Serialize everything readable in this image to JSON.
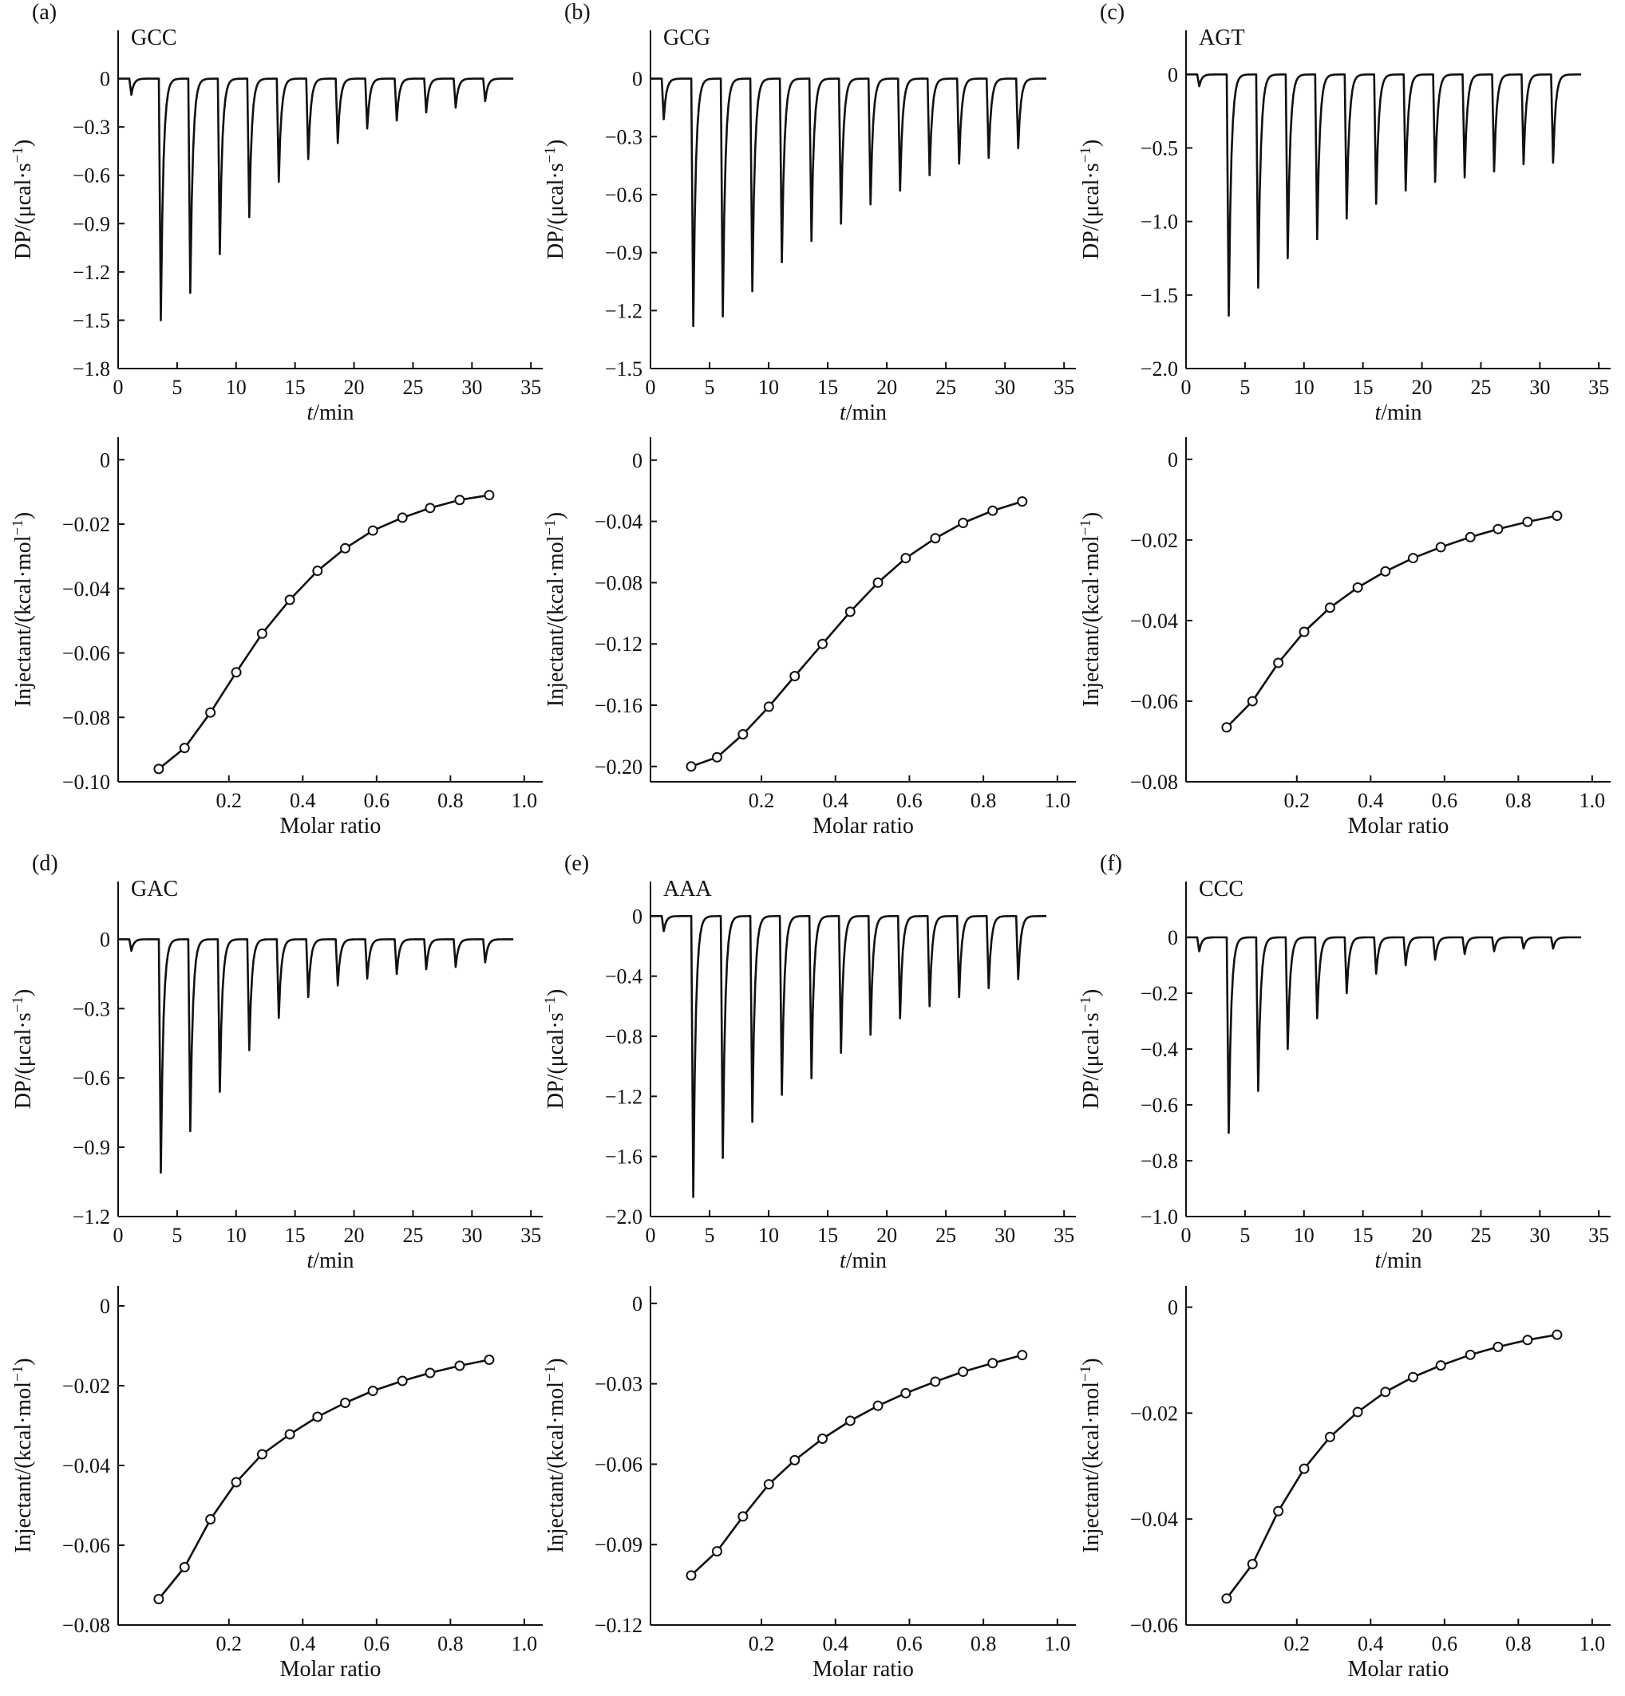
{
  "figure": {
    "panels": [
      {
        "tag": "(a)",
        "sample": "GCC"
      },
      {
        "tag": "(b)",
        "sample": "GCG"
      },
      {
        "tag": "(c)",
        "sample": "AGT"
      },
      {
        "tag": "(d)",
        "sample": "GAC"
      },
      {
        "tag": "(e)",
        "sample": "AAA"
      },
      {
        "tag": "(f)",
        "sample": "CCC"
      }
    ]
  },
  "chart_data": [
    {
      "panel": "(a)",
      "type": "line",
      "title": "GCC",
      "xlabel": "t/min",
      "ylabel": "DP/(μcal·s⁻¹)",
      "xlim": [
        0,
        36
      ],
      "ylim": [
        -1.8,
        0.3
      ],
      "xticks": [
        0,
        5,
        10,
        15,
        20,
        25,
        30,
        35
      ],
      "yticks": [
        0,
        -0.3,
        -0.6,
        -0.9,
        -1.2,
        -1.5,
        -1.8
      ],
      "ytick_labels": [
        "0",
        "−0.3",
        "−0.6",
        "−0.9",
        "−1.2",
        "−1.5",
        "−1.8"
      ],
      "trace_end": 33.5,
      "injections": [
        {
          "t": 1.0,
          "depth": -0.1
        },
        {
          "t": 3.5,
          "depth": -1.5
        },
        {
          "t": 6.0,
          "depth": -1.33
        },
        {
          "t": 8.5,
          "depth": -1.09
        },
        {
          "t": 11.0,
          "depth": -0.86
        },
        {
          "t": 13.5,
          "depth": -0.64
        },
        {
          "t": 16.0,
          "depth": -0.5
        },
        {
          "t": 18.5,
          "depth": -0.4
        },
        {
          "t": 21.0,
          "depth": -0.31
        },
        {
          "t": 23.5,
          "depth": -0.26
        },
        {
          "t": 26.0,
          "depth": -0.21
        },
        {
          "t": 28.5,
          "depth": -0.18
        },
        {
          "t": 31.0,
          "depth": -0.14
        }
      ]
    },
    {
      "panel": "(b)",
      "type": "line",
      "title": "GCG",
      "xlabel": "t/min",
      "ylabel": "DP/(μcal·s⁻¹)",
      "xlim": [
        0,
        36
      ],
      "ylim": [
        -1.5,
        0.25
      ],
      "xticks": [
        0,
        5,
        10,
        15,
        20,
        25,
        30,
        35
      ],
      "yticks": [
        0,
        -0.3,
        -0.6,
        -0.9,
        -1.2,
        -1.5
      ],
      "ytick_labels": [
        "0",
        "−0.3",
        "−0.6",
        "−0.9",
        "−1.2",
        "−1.5"
      ],
      "trace_end": 33.5,
      "injections": [
        {
          "t": 1.0,
          "depth": -0.21
        },
        {
          "t": 3.5,
          "depth": -1.28
        },
        {
          "t": 6.0,
          "depth": -1.23
        },
        {
          "t": 8.5,
          "depth": -1.1
        },
        {
          "t": 11.0,
          "depth": -0.95
        },
        {
          "t": 13.5,
          "depth": -0.84
        },
        {
          "t": 16.0,
          "depth": -0.75
        },
        {
          "t": 18.5,
          "depth": -0.65
        },
        {
          "t": 21.0,
          "depth": -0.58
        },
        {
          "t": 23.5,
          "depth": -0.5
        },
        {
          "t": 26.0,
          "depth": -0.44
        },
        {
          "t": 28.5,
          "depth": -0.41
        },
        {
          "t": 31.0,
          "depth": -0.36
        }
      ]
    },
    {
      "panel": "(c)",
      "type": "line",
      "title": "AGT",
      "xlabel": "t/min",
      "ylabel": "DP/(μcal·s⁻¹)",
      "xlim": [
        0,
        36
      ],
      "ylim": [
        -2.0,
        0.3
      ],
      "xticks": [
        0,
        5,
        10,
        15,
        20,
        25,
        30,
        35
      ],
      "yticks": [
        0,
        -0.5,
        -1.0,
        -1.5,
        -2.0
      ],
      "ytick_labels": [
        "0",
        "−0.5",
        "−1.0",
        "−1.5",
        "−2.0"
      ],
      "trace_end": 33.5,
      "injections": [
        {
          "t": 1.0,
          "depth": -0.08
        },
        {
          "t": 3.5,
          "depth": -1.64
        },
        {
          "t": 6.0,
          "depth": -1.45
        },
        {
          "t": 8.5,
          "depth": -1.25
        },
        {
          "t": 11.0,
          "depth": -1.12
        },
        {
          "t": 13.5,
          "depth": -0.98
        },
        {
          "t": 16.0,
          "depth": -0.88
        },
        {
          "t": 18.5,
          "depth": -0.79
        },
        {
          "t": 21.0,
          "depth": -0.73
        },
        {
          "t": 23.5,
          "depth": -0.7
        },
        {
          "t": 26.0,
          "depth": -0.66
        },
        {
          "t": 28.5,
          "depth": -0.61
        },
        {
          "t": 31.0,
          "depth": -0.6
        }
      ]
    },
    {
      "panel": "(a)",
      "type": "line",
      "title": "",
      "xlabel": "Molar ratio",
      "ylabel": "Injectant/(kcal·mol⁻¹)",
      "xlim": [
        -0.1,
        1.05
      ],
      "ylim": [
        -0.1,
        0.007
      ],
      "xticks": [
        0.2,
        0.4,
        0.6,
        0.8,
        1.0
      ],
      "xtick_labels": [
        "0.2",
        "0.4",
        "0.6",
        "0.8",
        "1.0"
      ],
      "yticks": [
        0,
        -0.02,
        -0.04,
        -0.06,
        -0.08,
        -0.1
      ],
      "ytick_labels": [
        "0",
        "−0.02",
        "−0.04",
        "−0.06",
        "−0.08",
        "−0.10"
      ],
      "x": [
        0.01,
        0.08,
        0.15,
        0.22,
        0.29,
        0.365,
        0.44,
        0.515,
        0.59,
        0.67,
        0.745,
        0.825,
        0.905
      ],
      "y": [
        -0.096,
        -0.0895,
        -0.0785,
        -0.066,
        -0.054,
        -0.0435,
        -0.0345,
        -0.0275,
        -0.022,
        -0.018,
        -0.015,
        -0.0125,
        -0.011
      ]
    },
    {
      "panel": "(b)",
      "type": "line",
      "title": "",
      "xlabel": "Molar ratio",
      "ylabel": "Injectant/(kcal·mol⁻¹)",
      "xlim": [
        -0.1,
        1.05
      ],
      "ylim": [
        -0.21,
        0.015
      ],
      "xticks": [
        0.2,
        0.4,
        0.6,
        0.8,
        1.0
      ],
      "xtick_labels": [
        "0.2",
        "0.4",
        "0.6",
        "0.8",
        "1.0"
      ],
      "yticks": [
        0,
        -0.04,
        -0.08,
        -0.12,
        -0.16,
        -0.2
      ],
      "ytick_labels": [
        "0",
        "−0.04",
        "−0.08",
        "−0.12",
        "−0.16",
        "−0.20"
      ],
      "x": [
        0.01,
        0.08,
        0.15,
        0.22,
        0.29,
        0.365,
        0.44,
        0.515,
        0.59,
        0.67,
        0.745,
        0.825,
        0.905
      ],
      "y": [
        -0.2,
        -0.194,
        -0.179,
        -0.161,
        -0.141,
        -0.12,
        -0.099,
        -0.08,
        -0.064,
        -0.051,
        -0.041,
        -0.033,
        -0.027
      ]
    },
    {
      "panel": "(c)",
      "type": "line",
      "title": "",
      "xlabel": "Molar ratio",
      "ylabel": "Injectant/(kcal·mol⁻¹)",
      "xlim": [
        -0.1,
        1.05
      ],
      "ylim": [
        -0.08,
        0.0055
      ],
      "xticks": [
        0.2,
        0.4,
        0.6,
        0.8,
        1.0
      ],
      "xtick_labels": [
        "0.2",
        "0.4",
        "0.6",
        "0.8",
        "1.0"
      ],
      "yticks": [
        0,
        -0.02,
        -0.04,
        -0.06,
        -0.08
      ],
      "ytick_labels": [
        "0",
        "−0.02",
        "−0.04",
        "−0.06",
        "−0.08"
      ],
      "x": [
        0.01,
        0.08,
        0.15,
        0.22,
        0.29,
        0.365,
        0.44,
        0.515,
        0.59,
        0.67,
        0.745,
        0.825,
        0.905
      ],
      "y": [
        -0.0665,
        -0.06,
        -0.0505,
        -0.0428,
        -0.0368,
        -0.0318,
        -0.0278,
        -0.0245,
        -0.0218,
        -0.0193,
        -0.0173,
        -0.0155,
        -0.014
      ]
    },
    {
      "panel": "(d)",
      "type": "line",
      "title": "GAC",
      "xlabel": "t/min",
      "ylabel": "DP/(μcal·s⁻¹)",
      "xlim": [
        0,
        36
      ],
      "ylim": [
        -1.2,
        0.25
      ],
      "xticks": [
        0,
        5,
        10,
        15,
        20,
        25,
        30,
        35
      ],
      "yticks": [
        0,
        -0.3,
        -0.6,
        -0.9,
        -1.2
      ],
      "ytick_labels": [
        "0",
        "−0.3",
        "−0.6",
        "−0.9",
        "−1.2"
      ],
      "trace_end": 33.5,
      "injections": [
        {
          "t": 1.0,
          "depth": -0.05
        },
        {
          "t": 3.5,
          "depth": -1.01
        },
        {
          "t": 6.0,
          "depth": -0.83
        },
        {
          "t": 8.5,
          "depth": -0.66
        },
        {
          "t": 11.0,
          "depth": -0.48
        },
        {
          "t": 13.5,
          "depth": -0.34
        },
        {
          "t": 16.0,
          "depth": -0.25
        },
        {
          "t": 18.5,
          "depth": -0.2
        },
        {
          "t": 21.0,
          "depth": -0.17
        },
        {
          "t": 23.5,
          "depth": -0.15
        },
        {
          "t": 26.0,
          "depth": -0.13
        },
        {
          "t": 28.5,
          "depth": -0.12
        },
        {
          "t": 31.0,
          "depth": -0.1
        }
      ]
    },
    {
      "panel": "(e)",
      "type": "line",
      "title": "AAA",
      "xlabel": "t/min",
      "ylabel": "DP/(μcal·s⁻¹)",
      "xlim": [
        0,
        36
      ],
      "ylim": [
        -2.0,
        0.23
      ],
      "xticks": [
        0,
        5,
        10,
        15,
        20,
        25,
        30,
        35
      ],
      "yticks": [
        0,
        -0.4,
        -0.8,
        -1.2,
        -1.6,
        -2.0
      ],
      "ytick_labels": [
        "0",
        "−0.4",
        "−0.8",
        "−1.2",
        "−1.6",
        "−2.0"
      ],
      "trace_end": 33.5,
      "injections": [
        {
          "t": 1.0,
          "depth": -0.1
        },
        {
          "t": 3.5,
          "depth": -1.87
        },
        {
          "t": 6.0,
          "depth": -1.61
        },
        {
          "t": 8.5,
          "depth": -1.37
        },
        {
          "t": 11.0,
          "depth": -1.19
        },
        {
          "t": 13.5,
          "depth": -1.08
        },
        {
          "t": 16.0,
          "depth": -0.91
        },
        {
          "t": 18.5,
          "depth": -0.79
        },
        {
          "t": 21.0,
          "depth": -0.68
        },
        {
          "t": 23.5,
          "depth": -0.6
        },
        {
          "t": 26.0,
          "depth": -0.54
        },
        {
          "t": 28.5,
          "depth": -0.48
        },
        {
          "t": 31.0,
          "depth": -0.42
        }
      ]
    },
    {
      "panel": "(f)",
      "type": "line",
      "title": "CCC",
      "xlabel": "t/min",
      "ylabel": "DP/(μcal·s⁻¹)",
      "xlim": [
        0,
        36
      ],
      "ylim": [
        -1.0,
        0.2
      ],
      "xticks": [
        0,
        5,
        10,
        15,
        20,
        25,
        30,
        35
      ],
      "yticks": [
        0,
        -0.2,
        -0.4,
        -0.6,
        -0.8,
        -1.0
      ],
      "ytick_labels": [
        "0",
        "−0.2",
        "−0.4",
        "−0.6",
        "−0.8",
        "−1.0"
      ],
      "trace_end": 33.5,
      "injections": [
        {
          "t": 1.0,
          "depth": -0.05
        },
        {
          "t": 3.5,
          "depth": -0.7
        },
        {
          "t": 6.0,
          "depth": -0.55
        },
        {
          "t": 8.5,
          "depth": -0.4
        },
        {
          "t": 11.0,
          "depth": -0.29
        },
        {
          "t": 13.5,
          "depth": -0.2
        },
        {
          "t": 16.0,
          "depth": -0.13
        },
        {
          "t": 18.5,
          "depth": -0.1
        },
        {
          "t": 21.0,
          "depth": -0.08
        },
        {
          "t": 23.5,
          "depth": -0.06
        },
        {
          "t": 26.0,
          "depth": -0.05
        },
        {
          "t": 28.5,
          "depth": -0.04
        },
        {
          "t": 31.0,
          "depth": -0.04
        }
      ]
    },
    {
      "panel": "(d)",
      "type": "line",
      "title": "",
      "xlabel": "Molar ratio",
      "ylabel": "Injectant/(kcal·mol⁻¹)",
      "xlim": [
        -0.1,
        1.05
      ],
      "ylim": [
        -0.08,
        0.005
      ],
      "xticks": [
        0.2,
        0.4,
        0.6,
        0.8,
        1.0
      ],
      "xtick_labels": [
        "0.2",
        "0.4",
        "0.6",
        "0.8",
        "1.0"
      ],
      "yticks": [
        0,
        -0.02,
        -0.04,
        -0.06,
        -0.08
      ],
      "ytick_labels": [
        "0",
        "−0.02",
        "−0.04",
        "−0.06",
        "−0.08"
      ],
      "x": [
        0.01,
        0.08,
        0.15,
        0.22,
        0.29,
        0.365,
        0.44,
        0.515,
        0.59,
        0.67,
        0.745,
        0.825,
        0.905
      ],
      "y": [
        -0.0735,
        -0.0655,
        -0.0535,
        -0.0442,
        -0.0372,
        -0.0322,
        -0.0278,
        -0.0243,
        -0.0213,
        -0.0188,
        -0.0168,
        -0.015,
        -0.0135
      ]
    },
    {
      "panel": "(e)",
      "type": "line",
      "title": "",
      "xlabel": "Molar ratio",
      "ylabel": "Injectant/(kcal·mol⁻¹)",
      "xlim": [
        -0.1,
        1.05
      ],
      "ylim": [
        -0.12,
        0.0065
      ],
      "xticks": [
        0.2,
        0.4,
        0.6,
        0.8,
        1.0
      ],
      "xtick_labels": [
        "0.2",
        "0.4",
        "0.6",
        "0.8",
        "1.0"
      ],
      "yticks": [
        0,
        -0.03,
        -0.06,
        -0.09,
        -0.12
      ],
      "ytick_labels": [
        "0",
        "−0.03",
        "−0.06",
        "−0.09",
        "−0.12"
      ],
      "x": [
        0.01,
        0.08,
        0.15,
        0.22,
        0.29,
        0.365,
        0.44,
        0.515,
        0.59,
        0.67,
        0.745,
        0.825,
        0.905
      ],
      "y": [
        -0.1015,
        -0.0925,
        -0.0795,
        -0.0675,
        -0.0585,
        -0.0505,
        -0.0438,
        -0.0382,
        -0.0335,
        -0.0292,
        -0.0255,
        -0.0223,
        -0.0193
      ]
    },
    {
      "panel": "(f)",
      "type": "line",
      "title": "",
      "xlabel": "Molar ratio",
      "ylabel": "Injectant/(kcal·mol⁻¹)",
      "xlim": [
        -0.1,
        1.05
      ],
      "ylim": [
        -0.06,
        0.004
      ],
      "xticks": [
        0.2,
        0.4,
        0.6,
        0.8,
        1.0
      ],
      "xtick_labels": [
        "0.2",
        "0.4",
        "0.6",
        "0.8",
        "1.0"
      ],
      "yticks": [
        0,
        -0.02,
        -0.04,
        -0.06
      ],
      "ytick_labels": [
        "0",
        "−0.02",
        "−0.04",
        "−0.06"
      ],
      "x": [
        0.01,
        0.08,
        0.15,
        0.22,
        0.29,
        0.365,
        0.44,
        0.515,
        0.59,
        0.67,
        0.745,
        0.825,
        0.905
      ],
      "y": [
        -0.055,
        -0.0485,
        -0.0385,
        -0.0305,
        -0.0245,
        -0.0198,
        -0.016,
        -0.0132,
        -0.011,
        -0.009,
        -0.0075,
        -0.0062,
        -0.0052
      ]
    }
  ]
}
